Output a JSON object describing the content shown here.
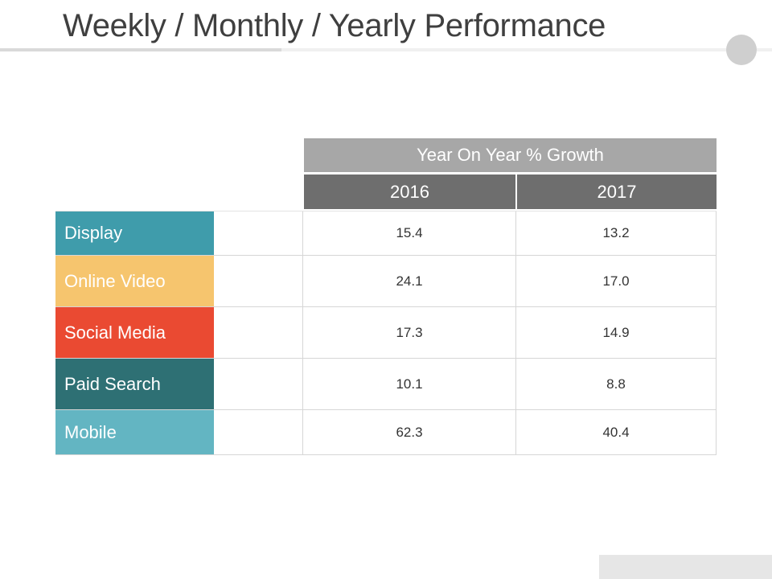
{
  "title": "Weekly / Monthly / Yearly Performance",
  "table": {
    "group_header": "Year On Year % Growth",
    "years": [
      "2016",
      "2017"
    ],
    "rows": [
      {
        "label": "Display",
        "v2016": "15.4",
        "v2017": "13.2",
        "color": "#3f9cab"
      },
      {
        "label": "Online Video",
        "v2016": "24.1",
        "v2017": "17.0",
        "color": "#f6c56e"
      },
      {
        "label": "Social Media",
        "v2016": "17.3",
        "v2017": "14.9",
        "color": "#ea4a32"
      },
      {
        "label": "Paid Search",
        "v2016": "10.1",
        "v2017": "8.8",
        "color": "#2e7074"
      },
      {
        "label": "Mobile",
        "v2016": "62.3",
        "v2017": "40.4",
        "color": "#63b5c2"
      }
    ]
  },
  "chart_data": {
    "type": "table",
    "title": "Weekly / Monthly / Yearly Performance",
    "group_header": "Year On Year % Growth",
    "columns": [
      "2016",
      "2017"
    ],
    "rows": [
      "Display",
      "Online Video",
      "Social Media",
      "Paid Search",
      "Mobile"
    ],
    "series": [
      {
        "name": "2016",
        "values": [
          15.4,
          24.1,
          17.3,
          10.1,
          62.3
        ]
      },
      {
        "name": "2017",
        "values": [
          13.2,
          17.0,
          14.9,
          8.8,
          40.4
        ]
      }
    ]
  }
}
